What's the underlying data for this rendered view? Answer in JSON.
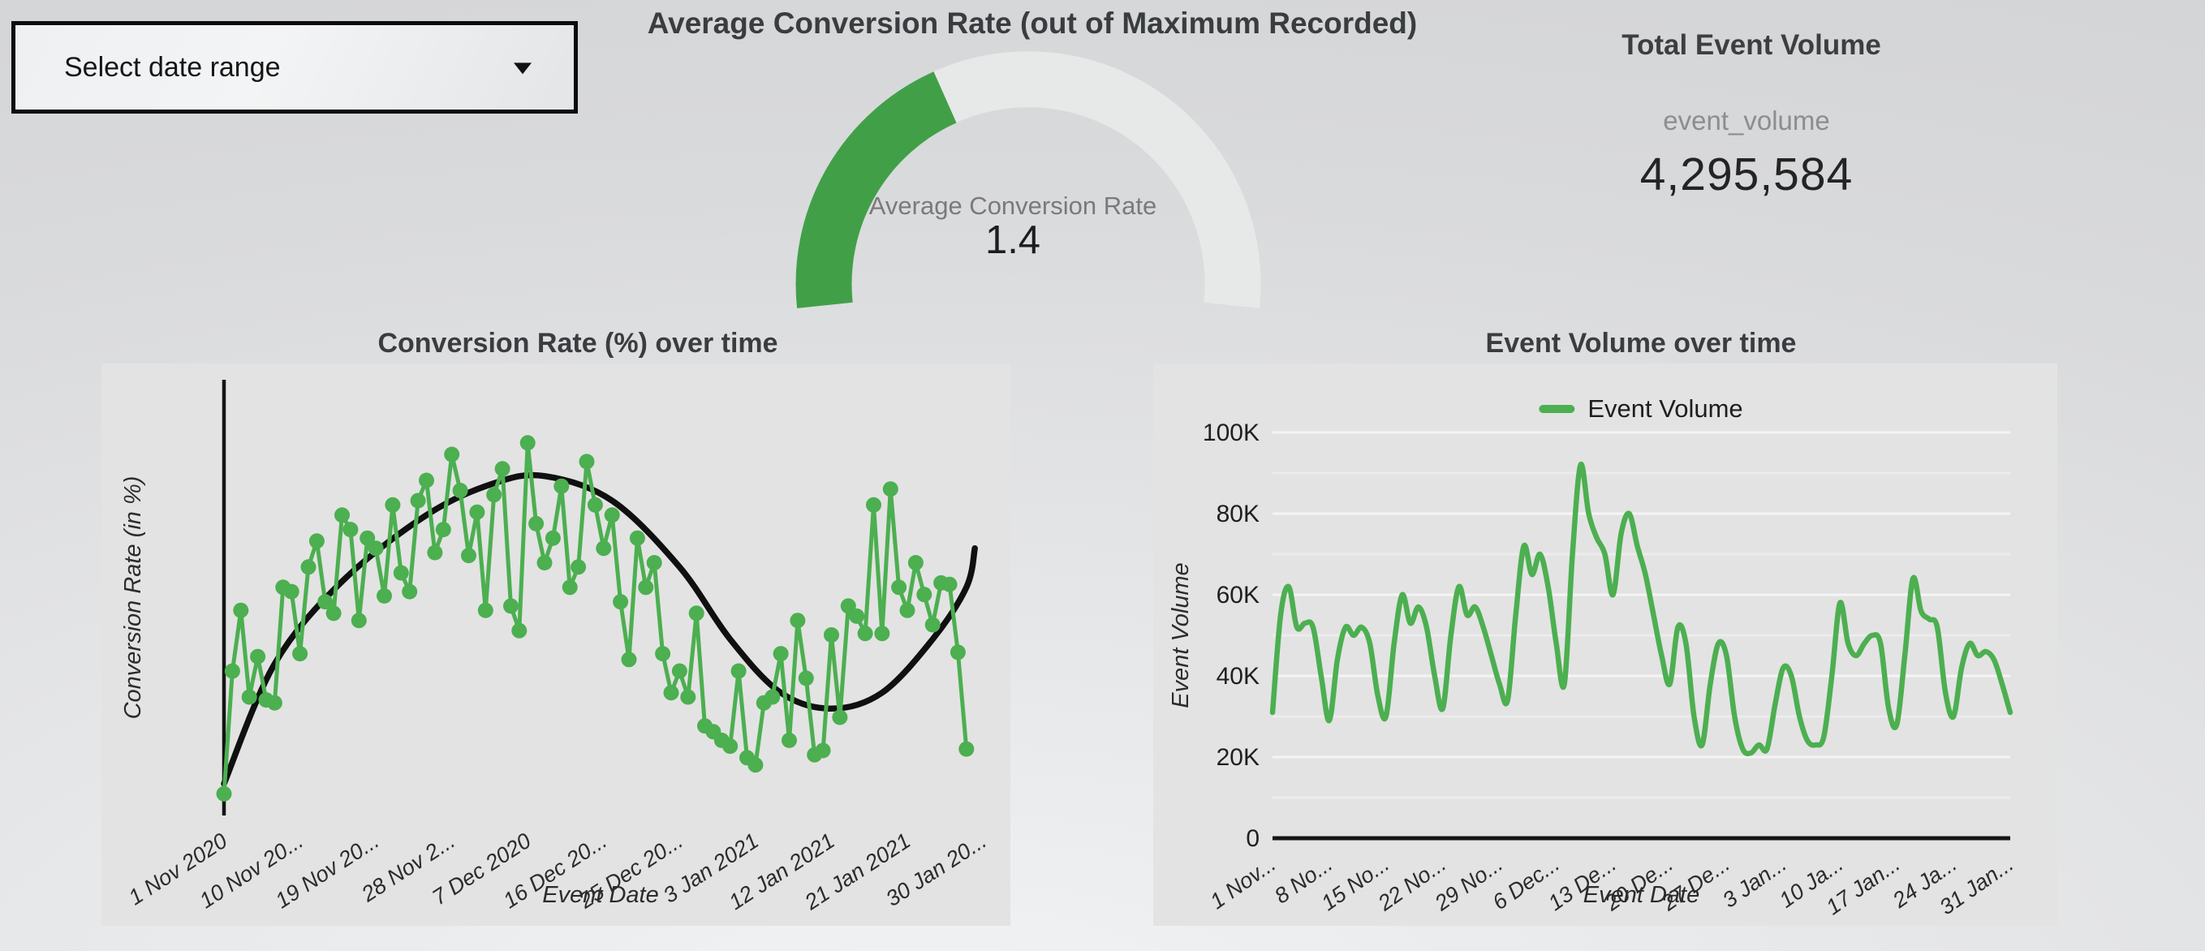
{
  "controls": {
    "date_filter": {
      "label": "Select date range"
    }
  },
  "gauge": {
    "title": "Average Conversion Rate (out of Maximum Recorded)",
    "label": "Average Conversion Rate",
    "value": "1.4",
    "value_num": 1.4,
    "fraction_of_max": 0.375,
    "start_deg": 186,
    "end_deg": -6,
    "color": "#41a047",
    "track_color": "#e7e8e8"
  },
  "scorecard": {
    "title": "Total Event Volume",
    "metric_label": "event_volume",
    "value": "4,295,584"
  },
  "colors": {
    "series_green": "#4caf50",
    "trend_black": "#101010",
    "axis": "#141414",
    "grid_major": "#f4f4f4",
    "grid_minor": "#ececec"
  },
  "chart_data": [
    {
      "type": "line",
      "title": "Conversion Rate (%) over time",
      "xlabel": "Event Date",
      "ylabel": "Conversion Rate (in %)",
      "grid": false,
      "legend_position": "none",
      "ylim": [
        0,
        3.1
      ],
      "x_unit": "days since 1 Nov 2020",
      "x_tick_days": [
        0,
        9,
        18,
        27,
        36,
        45,
        54,
        63,
        72,
        81,
        90
      ],
      "x_tick_labels": [
        "1 Nov 2020",
        "10 Nov 20...",
        "19 Nov 20...",
        "28 Nov 2...",
        "7 Dec 2020",
        "16 Dec 20...",
        "25 Dec 20...",
        "3 Jan 2021",
        "12 Jan 2021",
        "21 Jan 2021",
        "30 Jan 20..."
      ],
      "x_days_total": 91,
      "series": [
        {
          "name": "Conversion Rate (in %)",
          "marker": "circle",
          "values": [
            0.15,
            1.0,
            1.42,
            0.82,
            1.1,
            0.8,
            0.78,
            1.58,
            1.55,
            1.12,
            1.72,
            1.9,
            1.48,
            1.4,
            2.08,
            1.98,
            1.35,
            1.92,
            1.85,
            1.52,
            2.15,
            1.68,
            1.55,
            2.18,
            2.32,
            1.82,
            1.98,
            2.5,
            2.25,
            1.8,
            2.1,
            1.42,
            2.22,
            2.4,
            1.45,
            1.28,
            2.58,
            2.02,
            1.75,
            1.92,
            2.28,
            1.58,
            1.72,
            2.45,
            2.15,
            1.85,
            2.08,
            1.48,
            1.08,
            1.92,
            1.58,
            1.75,
            1.12,
            0.85,
            1.0,
            0.82,
            1.4,
            0.62,
            0.58,
            0.52,
            0.48,
            1.0,
            0.4,
            0.35,
            0.78,
            0.82,
            1.12,
            0.52,
            1.35,
            0.95,
            0.42,
            0.45,
            1.25,
            0.68,
            1.45,
            1.38,
            1.26,
            2.15,
            1.26,
            2.26,
            1.58,
            1.42,
            1.75,
            1.53,
            1.32,
            1.61,
            1.6,
            1.13,
            0.46
          ]
        }
      ],
      "trendline": {
        "name": "trend",
        "points": [
          [
            0,
            0.22
          ],
          [
            6,
            1.05
          ],
          [
            14,
            1.62
          ],
          [
            24,
            2.08
          ],
          [
            32,
            2.3
          ],
          [
            38,
            2.35
          ],
          [
            46,
            2.18
          ],
          [
            54,
            1.72
          ],
          [
            60,
            1.22
          ],
          [
            66,
            0.85
          ],
          [
            72,
            0.74
          ],
          [
            78,
            0.85
          ],
          [
            84,
            1.22
          ],
          [
            88,
            1.58
          ],
          [
            89,
            1.85
          ]
        ]
      }
    },
    {
      "type": "line",
      "title": "Event Volume over time",
      "xlabel": "Event Date",
      "ylabel": "Event Volume",
      "grid": true,
      "legend_position": "top",
      "ylim": [
        0,
        100000
      ],
      "y_tick_values_k": [
        0,
        20,
        40,
        60,
        80,
        100
      ],
      "y_tick_labels": [
        "0",
        "20K",
        "40K",
        "60K",
        "80K",
        "100K"
      ],
      "x_unit": "days since 1 Nov 2020",
      "x_tick_days": [
        0,
        7,
        14,
        21,
        28,
        35,
        42,
        49,
        56,
        63,
        70,
        77,
        84,
        91
      ],
      "x_tick_labels": [
        "1 Nov...",
        "8 No...",
        "15 No...",
        "22 No...",
        "29 No...",
        "6 Dec...",
        "13 De...",
        "20 De...",
        "27 De...",
        "3 Jan...",
        "10 Ja...",
        "17 Jan...",
        "24 Ja...",
        "31 Jan..."
      ],
      "x_days_total": 91,
      "series": [
        {
          "name": "Event Volume",
          "smooth": true,
          "values_k": [
            31,
            55,
            62,
            52,
            53,
            52,
            40,
            29,
            44,
            52,
            50,
            52,
            48,
            35,
            30,
            48,
            60,
            53,
            57,
            52,
            40,
            32,
            50,
            62,
            55,
            57,
            52,
            45,
            38,
            34,
            55,
            72,
            65,
            70,
            62,
            48,
            38,
            70,
            92,
            80,
            74,
            70,
            60,
            75,
            80,
            72,
            65,
            55,
            45,
            38,
            52,
            48,
            30,
            23,
            38,
            48,
            45,
            30,
            22,
            21,
            23,
            22,
            33,
            42,
            40,
            30,
            24,
            23,
            25,
            40,
            58,
            48,
            45,
            48,
            50,
            48,
            32,
            28,
            45,
            64,
            56,
            54,
            52,
            36,
            30,
            42,
            48,
            45,
            46,
            44,
            38,
            31
          ]
        }
      ]
    }
  ]
}
